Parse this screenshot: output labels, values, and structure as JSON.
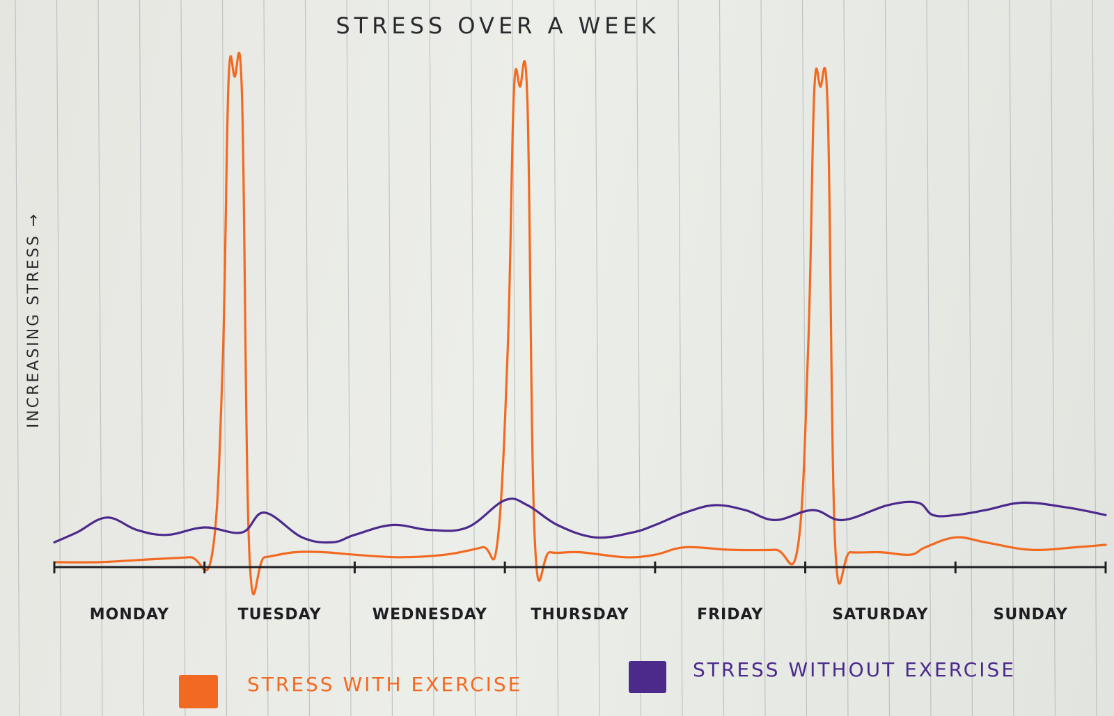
{
  "chart_data": {
    "type": "line",
    "title": "STRESS OVER A WEEK",
    "ylabel": "INCREASING STRESS →",
    "xlabel": "",
    "categories": [
      "MONDAY",
      "TUESDAY",
      "WEDNESDAY",
      "THURSDAY",
      "FRIDAY",
      "SATURDAY",
      "SUNDAY"
    ],
    "xlim": [
      0,
      7
    ],
    "ylim": [
      0,
      100
    ],
    "grid": false,
    "legend_position": "bottom",
    "series": [
      {
        "name": "STRESS WITH EXERCISE",
        "color": "#f26a21",
        "x": [
          0,
          0.3,
          0.6,
          0.9,
          1.05,
          1.12,
          1.16,
          1.2,
          1.25,
          1.3,
          1.4,
          1.6,
          1.8,
          2.0,
          2.3,
          2.6,
          2.85,
          2.95,
          3.02,
          3.06,
          3.1,
          3.15,
          3.2,
          3.3,
          3.5,
          3.8,
          4.0,
          4.2,
          4.5,
          4.8,
          4.95,
          5.02,
          5.06,
          5.1,
          5.15,
          5.2,
          5.3,
          5.5,
          5.7,
          5.8,
          6.0,
          6.2,
          6.5,
          6.8,
          7.0
        ],
        "y": [
          1,
          1,
          1.5,
          2,
          2.5,
          40,
          98,
          99,
          95,
          2,
          2,
          3,
          3,
          2.5,
          2,
          2.5,
          4,
          5,
          45,
          96,
          97,
          94,
          5,
          3,
          3,
          2,
          2.5,
          4,
          3.5,
          3.5,
          4,
          45,
          96,
          97,
          92,
          4,
          3,
          3,
          2.5,
          4,
          6,
          5,
          3.5,
          4,
          4.5
        ]
      },
      {
        "name": "STRESS WITHOUT EXERCISE",
        "color": "#4b2a8c",
        "x": [
          0,
          0.15,
          0.35,
          0.55,
          0.75,
          1.0,
          1.25,
          1.4,
          1.65,
          1.85,
          2.0,
          2.25,
          2.5,
          2.75,
          3.0,
          3.15,
          3.35,
          3.6,
          3.85,
          4.0,
          4.2,
          4.4,
          4.6,
          4.8,
          5.05,
          5.25,
          5.55,
          5.75,
          5.85,
          6.0,
          6.2,
          6.45,
          6.75,
          7.0
        ],
        "y": [
          5,
          7,
          10,
          7.5,
          6.5,
          8,
          7,
          11,
          6,
          5,
          6.5,
          8.5,
          7.5,
          8,
          13.5,
          12.5,
          8.5,
          6,
          7,
          8.5,
          11,
          12.5,
          11.5,
          9.5,
          11.5,
          9.5,
          12.5,
          13,
          10.5,
          10.5,
          11.5,
          13,
          12,
          10.5
        ]
      }
    ]
  }
}
